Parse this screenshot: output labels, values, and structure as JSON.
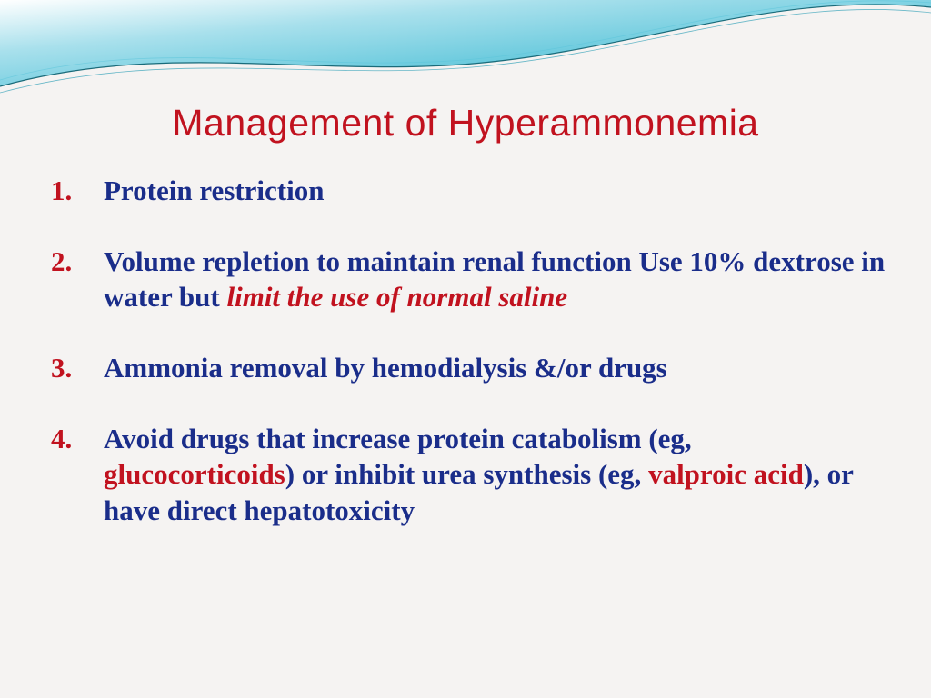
{
  "colors": {
    "background": "#f5f3f2",
    "title_red": "#c1121f",
    "number_red": "#c1121f",
    "body_blue": "#1a2d8a",
    "emphasis_red": "#c1121f",
    "wave_cyan_light": "#a8e0ec",
    "wave_cyan_mid": "#5bc5da",
    "wave_cyan_dark": "#2a9db5",
    "wave_line": "#1a6b7a"
  },
  "typography": {
    "title_fontsize": 41,
    "body_fontsize": 31,
    "title_font": "Impact",
    "body_font": "Georgia"
  },
  "title": "Management of Hyperammonemia",
  "items": [
    {
      "segments": [
        {
          "text": "Protein restriction",
          "style": "blue"
        }
      ]
    },
    {
      "segments": [
        {
          "text": "Volume repletion to maintain renal function Use 10% dextrose in water but ",
          "style": "blue"
        },
        {
          "text": "limit the use of normal saline",
          "style": "red-italic"
        }
      ]
    },
    {
      "segments": [
        {
          "text": "Ammonia removal by hemodialysis &/or drugs",
          "style": "blue"
        }
      ]
    },
    {
      "segments": [
        {
          "text": "Avoid drugs that increase protein catabolism (eg, ",
          "style": "blue"
        },
        {
          "text": "glucocorticoids",
          "style": "red-plain"
        },
        {
          "text": ") or inhibit urea synthesis (eg, ",
          "style": "blue"
        },
        {
          "text": "valproic acid",
          "style": "red-plain"
        },
        {
          "text": "), or have direct hepatotoxicity",
          "style": "blue"
        }
      ]
    }
  ]
}
